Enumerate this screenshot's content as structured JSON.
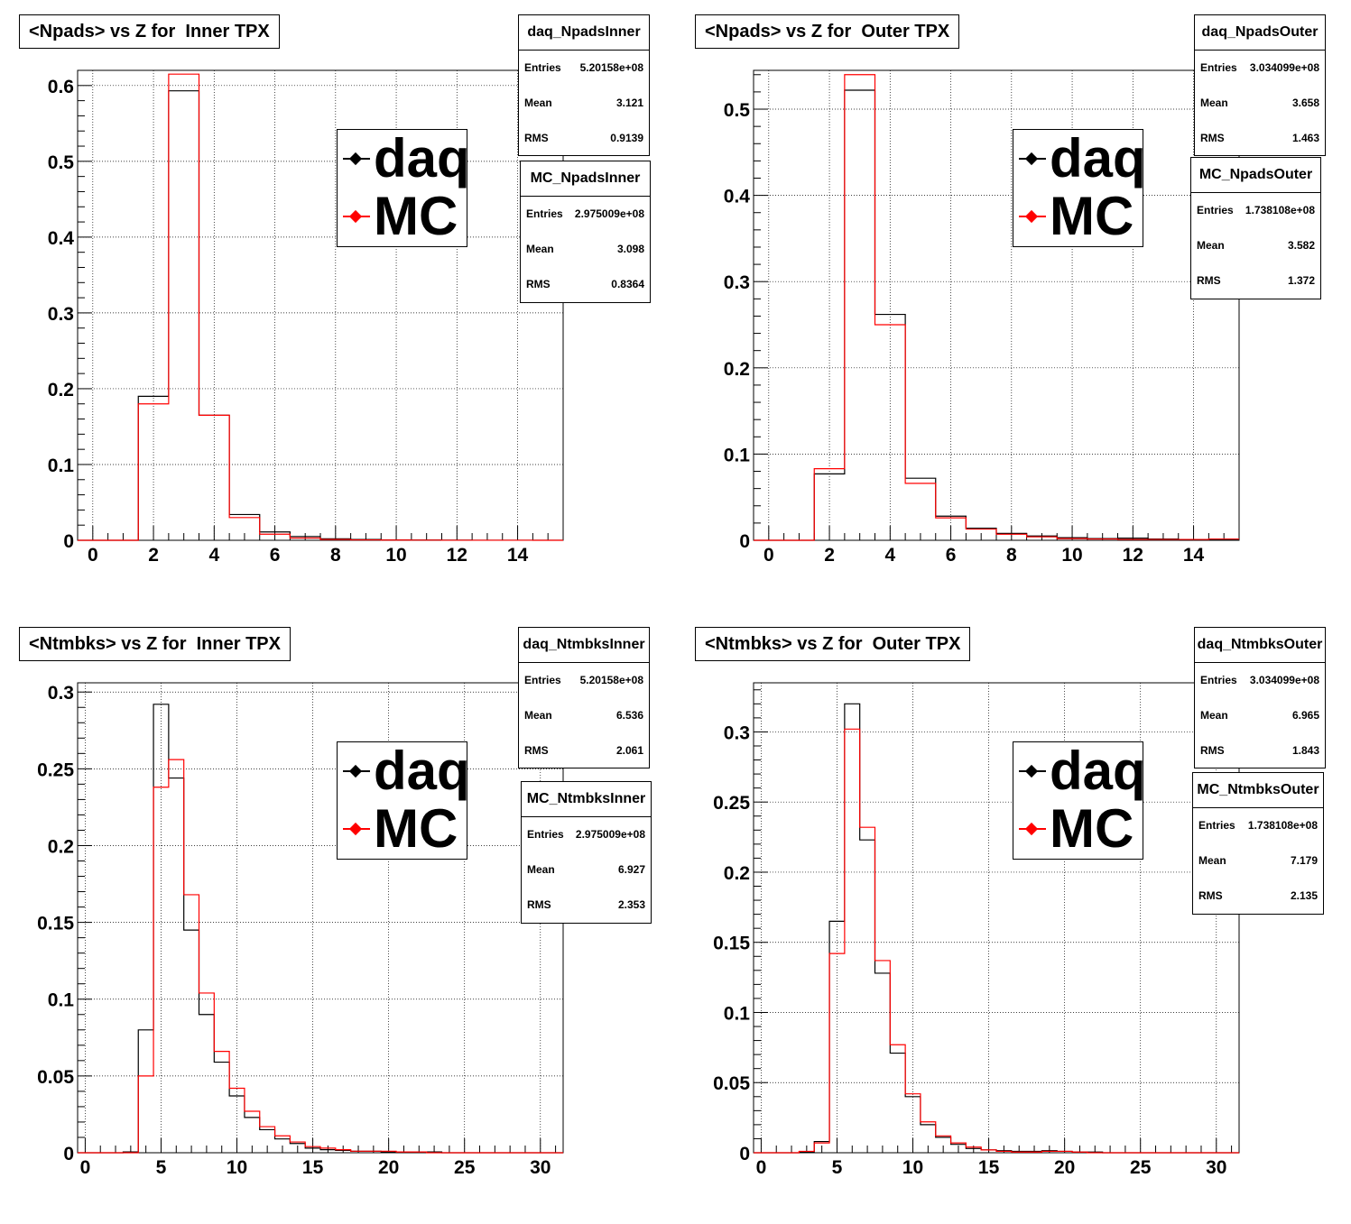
{
  "colors": {
    "daq": "#000000",
    "mc": "#ff0000",
    "grid": "#000000",
    "background": "#ffffff"
  },
  "legend": {
    "daq_label": "daq",
    "mc_label": "MC"
  },
  "panels": [
    {
      "title": "<Npads> vs Z for  Inner TPX",
      "stats": [
        {
          "name": "daq_NpadsInner",
          "entries": "5.20158e+08",
          "mean": "3.121",
          "rms": "0.9139"
        },
        {
          "name": "MC_NpadsInner",
          "entries": "2.975009e+08",
          "mean": "3.098",
          "rms": "0.8364"
        }
      ]
    },
    {
      "title": "<Npads> vs Z for  Outer TPX",
      "stats": [
        {
          "name": "daq_NpadsOuter",
          "entries": "3.034099e+08",
          "mean": "3.658",
          "rms": "1.463"
        },
        {
          "name": "MC_NpadsOuter",
          "entries": "1.738108e+08",
          "mean": "3.582",
          "rms": "1.372"
        }
      ]
    },
    {
      "title": "<Ntmbks> vs Z for  Inner TPX",
      "stats": [
        {
          "name": "daq_NtmbksInner",
          "entries": "5.20158e+08",
          "mean": "6.536",
          "rms": "2.061"
        },
        {
          "name": "MC_NtmbksInner",
          "entries": "2.975009e+08",
          "mean": "6.927",
          "rms": "2.353"
        }
      ]
    },
    {
      "title": "<Ntmbks> vs Z for  Outer TPX",
      "stats": [
        {
          "name": "daq_NtmbksOuter",
          "entries": "3.034099e+08",
          "mean": "6.965",
          "rms": "1.843"
        },
        {
          "name": "MC_NtmbksOuter",
          "entries": "1.738108e+08",
          "mean": "7.179",
          "rms": "2.135"
        }
      ]
    }
  ],
  "stat_labels": {
    "entries": "Entries",
    "mean": "Mean",
    "rms": "RMS"
  },
  "chart_data": [
    {
      "type": "histogram",
      "title": "<Npads> vs Z for  Inner TPX",
      "grid": true,
      "xlim": [
        -0.5,
        15.5
      ],
      "ylim": [
        0,
        0.62
      ],
      "xticks": [
        0,
        2,
        4,
        6,
        8,
        10,
        12,
        14
      ],
      "yticks": [
        0,
        0.1,
        0.2,
        0.3,
        0.4,
        0.5,
        0.6
      ],
      "ytick_labels": [
        "0",
        "0.1",
        "0.2",
        "0.3",
        "0.4",
        "0.5",
        "0.6"
      ],
      "bin_width": 1,
      "x_first_bin_low": -0.5,
      "series": [
        {
          "name": "daq",
          "color": "#000000",
          "values": [
            0,
            0,
            0.19,
            0.593,
            0.165,
            0.034,
            0.011,
            0.005,
            0.002,
            0.001,
            0.0005,
            0.0003,
            0.0002,
            0.0001,
            0.0001,
            0.0001
          ]
        },
        {
          "name": "MC",
          "color": "#ff0000",
          "values": [
            0,
            0,
            0.18,
            0.615,
            0.165,
            0.03,
            0.008,
            0.003,
            0.001,
            0.0005,
            0.0003,
            0.0002,
            0.0001,
            0.0001,
            0.0001,
            0
          ]
        }
      ]
    },
    {
      "type": "histogram",
      "title": "<Npads> vs Z for  Outer TPX",
      "grid": true,
      "xlim": [
        -0.5,
        15.5
      ],
      "ylim": [
        0,
        0.545
      ],
      "xticks": [
        0,
        2,
        4,
        6,
        8,
        10,
        12,
        14
      ],
      "yticks": [
        0,
        0.1,
        0.2,
        0.3,
        0.4,
        0.5
      ],
      "ytick_labels": [
        "0",
        "0.1",
        "0.2",
        "0.3",
        "0.4",
        "0.5"
      ],
      "bin_width": 1,
      "x_first_bin_low": -0.5,
      "series": [
        {
          "name": "daq",
          "color": "#000000",
          "values": [
            0,
            0,
            0.077,
            0.522,
            0.262,
            0.072,
            0.028,
            0.014,
            0.008,
            0.005,
            0.003,
            0.002,
            0.0025,
            0.0015,
            0.001,
            0.001
          ]
        },
        {
          "name": "MC",
          "color": "#ff0000",
          "values": [
            0,
            0,
            0.083,
            0.54,
            0.25,
            0.066,
            0.026,
            0.013,
            0.007,
            0.004,
            0.002,
            0.0015,
            0.001,
            0.001,
            0.001,
            0.0015
          ]
        }
      ]
    },
    {
      "type": "histogram",
      "title": "<Ntmbks> vs Z for  Inner TPX",
      "grid": true,
      "xlim": [
        -0.5,
        31.5
      ],
      "ylim": [
        0,
        0.306
      ],
      "xticks": [
        0,
        5,
        10,
        15,
        20,
        25,
        30
      ],
      "yticks": [
        0,
        0.05,
        0.1,
        0.15,
        0.2,
        0.25,
        0.3
      ],
      "ytick_labels": [
        "0",
        "0.05",
        "0.1",
        "0.15",
        "0.2",
        "0.25",
        "0.3"
      ],
      "bin_width": 1,
      "x_first_bin_low": -0.5,
      "series": [
        {
          "name": "daq",
          "color": "#000000",
          "values": [
            0,
            0,
            0,
            0.0005,
            0.08,
            0.292,
            0.244,
            0.145,
            0.09,
            0.059,
            0.037,
            0.023,
            0.015,
            0.009,
            0.006,
            0.003,
            0.002,
            0.0015,
            0.001,
            0.001,
            0.0005,
            0.0005,
            0.0005,
            0.0005,
            0,
            0,
            0,
            0,
            0,
            0,
            0,
            0
          ]
        },
        {
          "name": "MC",
          "color": "#ff0000",
          "values": [
            0,
            0,
            0,
            0,
            0.05,
            0.238,
            0.256,
            0.168,
            0.104,
            0.066,
            0.042,
            0.027,
            0.017,
            0.011,
            0.007,
            0.004,
            0.003,
            0.002,
            0.001,
            0.001,
            0.001,
            0.0005,
            0.0005,
            0,
            0,
            0,
            0,
            0,
            0,
            0,
            0,
            0
          ]
        }
      ]
    },
    {
      "type": "histogram",
      "title": "<Ntmbks> vs Z for  Outer TPX",
      "grid": true,
      "xlim": [
        -0.5,
        31.5
      ],
      "ylim": [
        0,
        0.335
      ],
      "xticks": [
        0,
        5,
        10,
        15,
        20,
        25,
        30
      ],
      "yticks": [
        0,
        0.05,
        0.1,
        0.15,
        0.2,
        0.25,
        0.3
      ],
      "ytick_labels": [
        "0",
        "0.05",
        "0.1",
        "0.15",
        "0.2",
        "0.25",
        "0.3"
      ],
      "bin_width": 1,
      "x_first_bin_low": -0.5,
      "series": [
        {
          "name": "daq",
          "color": "#000000",
          "values": [
            0,
            0,
            0,
            0.0005,
            0.008,
            0.165,
            0.32,
            0.223,
            0.128,
            0.071,
            0.04,
            0.02,
            0.011,
            0.006,
            0.003,
            0.002,
            0.0015,
            0.001,
            0.001,
            0.0015,
            0.001,
            0.0005,
            0.0005,
            0,
            0,
            0,
            0,
            0,
            0,
            0,
            0,
            0
          ]
        },
        {
          "name": "MC",
          "color": "#ff0000",
          "values": [
            0,
            0,
            0,
            0.001,
            0.007,
            0.142,
            0.302,
            0.232,
            0.137,
            0.077,
            0.042,
            0.022,
            0.012,
            0.007,
            0.004,
            0.002,
            0.001,
            0.0005,
            0.0005,
            0.001,
            0.001,
            0.0005,
            0,
            0,
            0,
            0,
            0,
            0,
            0,
            0,
            0,
            0
          ]
        }
      ]
    }
  ]
}
